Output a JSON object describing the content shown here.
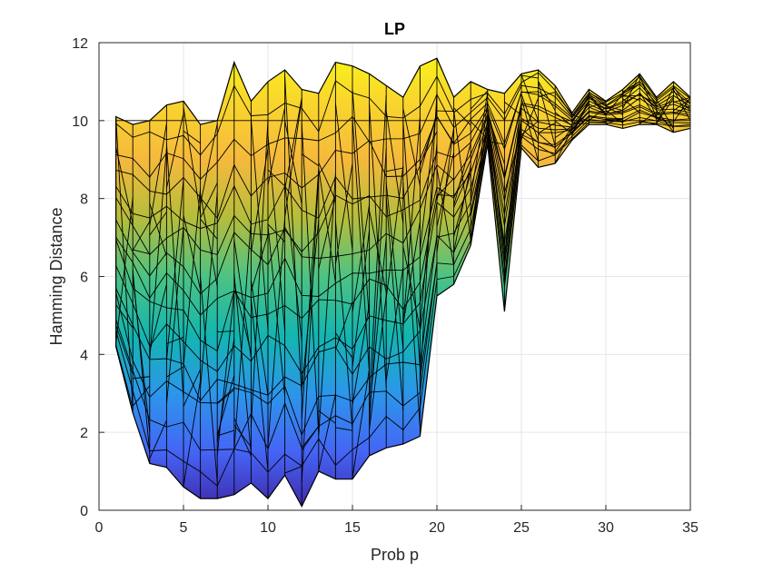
{
  "chart_data": {
    "type": "area",
    "title": "LP",
    "xlabel": "Prob p",
    "ylabel": "Hamming Distance",
    "xlim": [
      0,
      35
    ],
    "ylim": [
      0,
      12
    ],
    "xticks": [
      "0",
      "5",
      "10",
      "15",
      "20",
      "25",
      "30",
      "35"
    ],
    "yticks": [
      "0",
      "2",
      "4",
      "6",
      "8",
      "10",
      "12"
    ],
    "grid": true,
    "colormap": [
      "#3e26a8",
      "#4565f5",
      "#2c96ea",
      "#14b5b0",
      "#4cc383",
      "#b5bd3c",
      "#f5b93c",
      "#f9d62c",
      "#f9fb15"
    ],
    "surface": {
      "x": [
        1,
        2,
        3,
        4,
        5,
        6,
        7,
        8,
        9,
        10,
        11,
        12,
        13,
        14,
        15,
        16,
        17,
        18,
        19,
        20,
        21,
        22,
        23,
        24,
        25,
        26,
        27,
        28,
        29,
        30,
        31,
        32,
        33,
        34,
        35
      ],
      "bottom": [
        4.2,
        2.5,
        1.2,
        1.1,
        0.6,
        0.3,
        0.3,
        0.4,
        0.7,
        0.3,
        0.9,
        0.1,
        1.0,
        0.8,
        0.8,
        1.4,
        1.6,
        1.7,
        1.9,
        5.5,
        5.8,
        6.8,
        9.4,
        5.1,
        9.3,
        8.8,
        8.9,
        9.5,
        9.9,
        9.9,
        9.8,
        9.9,
        9.9,
        9.7,
        9.8
      ],
      "top": [
        10.1,
        9.9,
        10.0,
        10.4,
        10.5,
        9.9,
        10.0,
        11.5,
        10.5,
        11.0,
        11.3,
        10.8,
        10.7,
        11.5,
        11.4,
        11.2,
        10.9,
        10.6,
        11.4,
        11.6,
        10.6,
        11.0,
        10.8,
        10.7,
        11.2,
        11.3,
        10.9,
        10.2,
        10.8,
        10.5,
        10.8,
        11.2,
        10.6,
        11.0,
        10.6
      ]
    }
  }
}
